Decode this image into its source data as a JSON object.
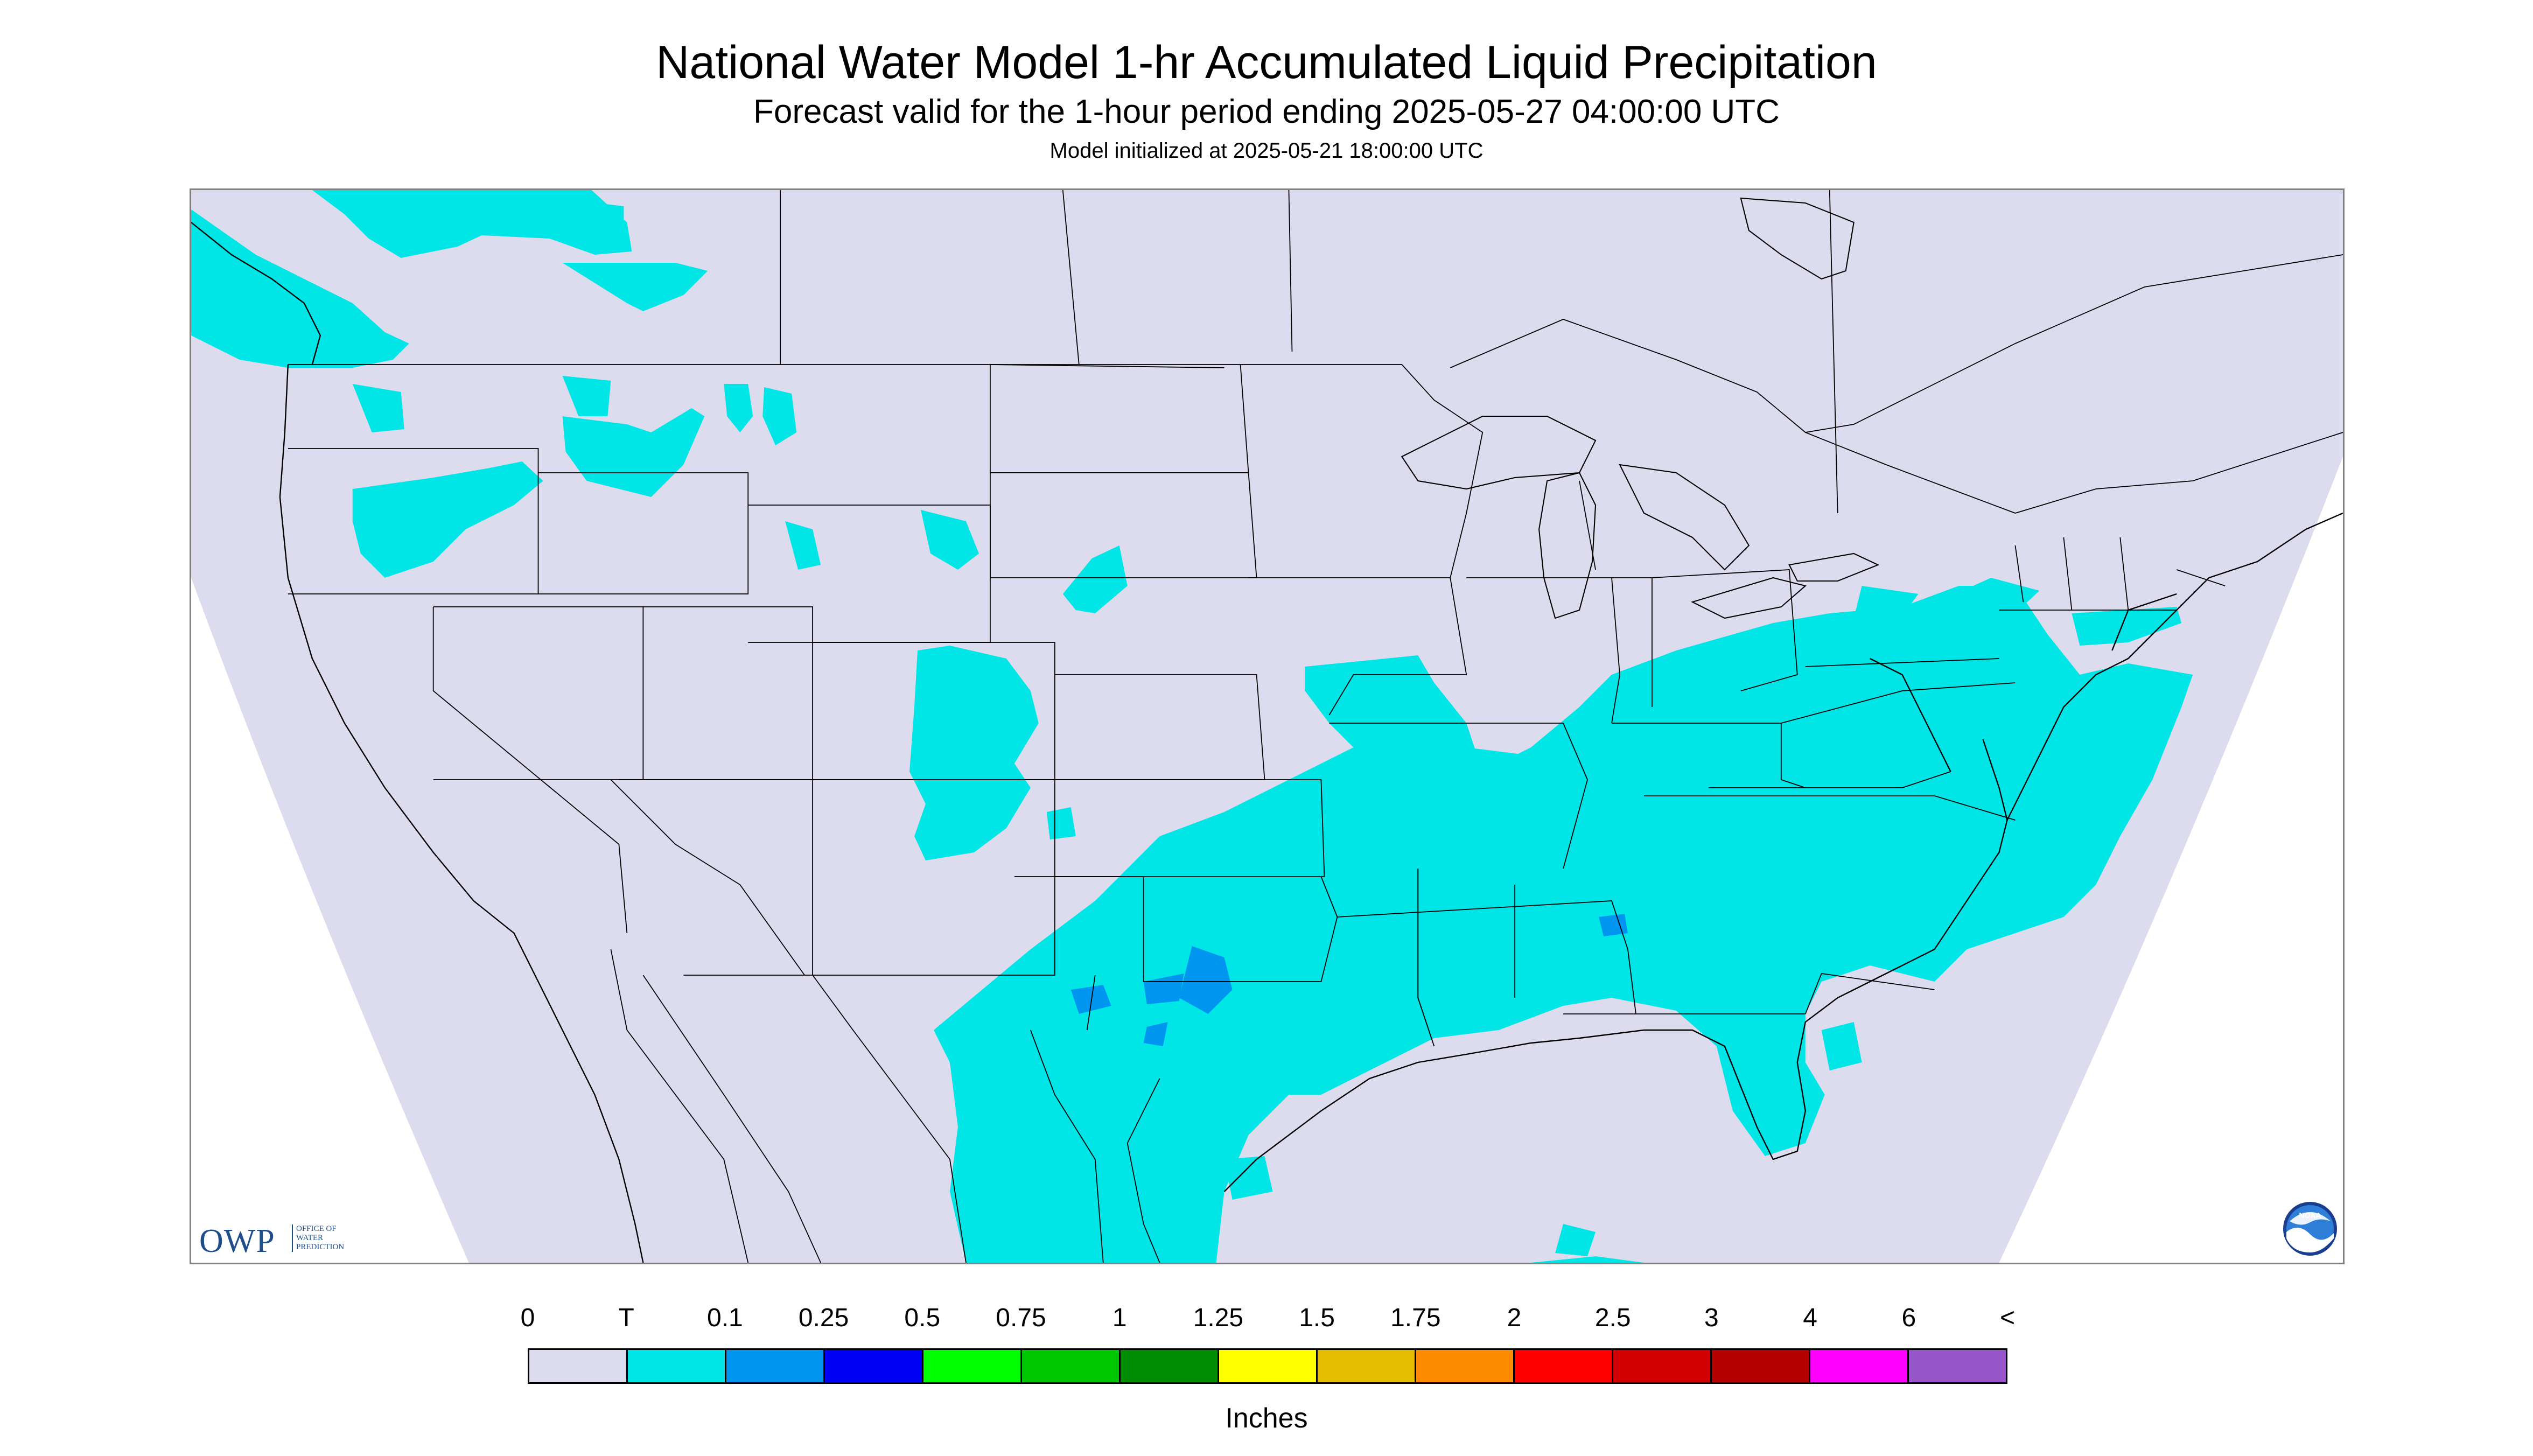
{
  "header": {
    "title": "National Water Model 1-hr Accumulated Liquid Precipitation",
    "subtitle": "Forecast valid for the 1-hour period ending 2025-05-27 04:00:00 UTC",
    "init": "Model initialized at 2025-05-21 18:00:00 UTC"
  },
  "logos": {
    "owp_letters": "OWP",
    "owp_line1": "OFFICE OF",
    "owp_line2": "WATER",
    "owp_line3": "PREDICTION",
    "noaa_text": "NOAA"
  },
  "legend": {
    "labels": [
      "0",
      "T",
      "0.1",
      "0.25",
      "0.5",
      "0.75",
      "1",
      "1.25",
      "1.5",
      "1.75",
      "2",
      "2.5",
      "3",
      "4",
      "6",
      "<"
    ],
    "colors": [
      "#dcdcee",
      "#00e6e6",
      "#0096f0",
      "#0000f5",
      "#00ff00",
      "#00c800",
      "#008c00",
      "#ffff00",
      "#e6be00",
      "#ff8c00",
      "#ff0000",
      "#d20000",
      "#b40000",
      "#ff00ff",
      "#9655c8"
    ],
    "units": "Inches"
  },
  "map": {
    "background_color": "#dcdcee",
    "offgrid_color": "#ffffff",
    "light_precip_color": "#00e6e6",
    "moderate_precip_color": "#0096f0",
    "border_color": "#000000"
  }
}
